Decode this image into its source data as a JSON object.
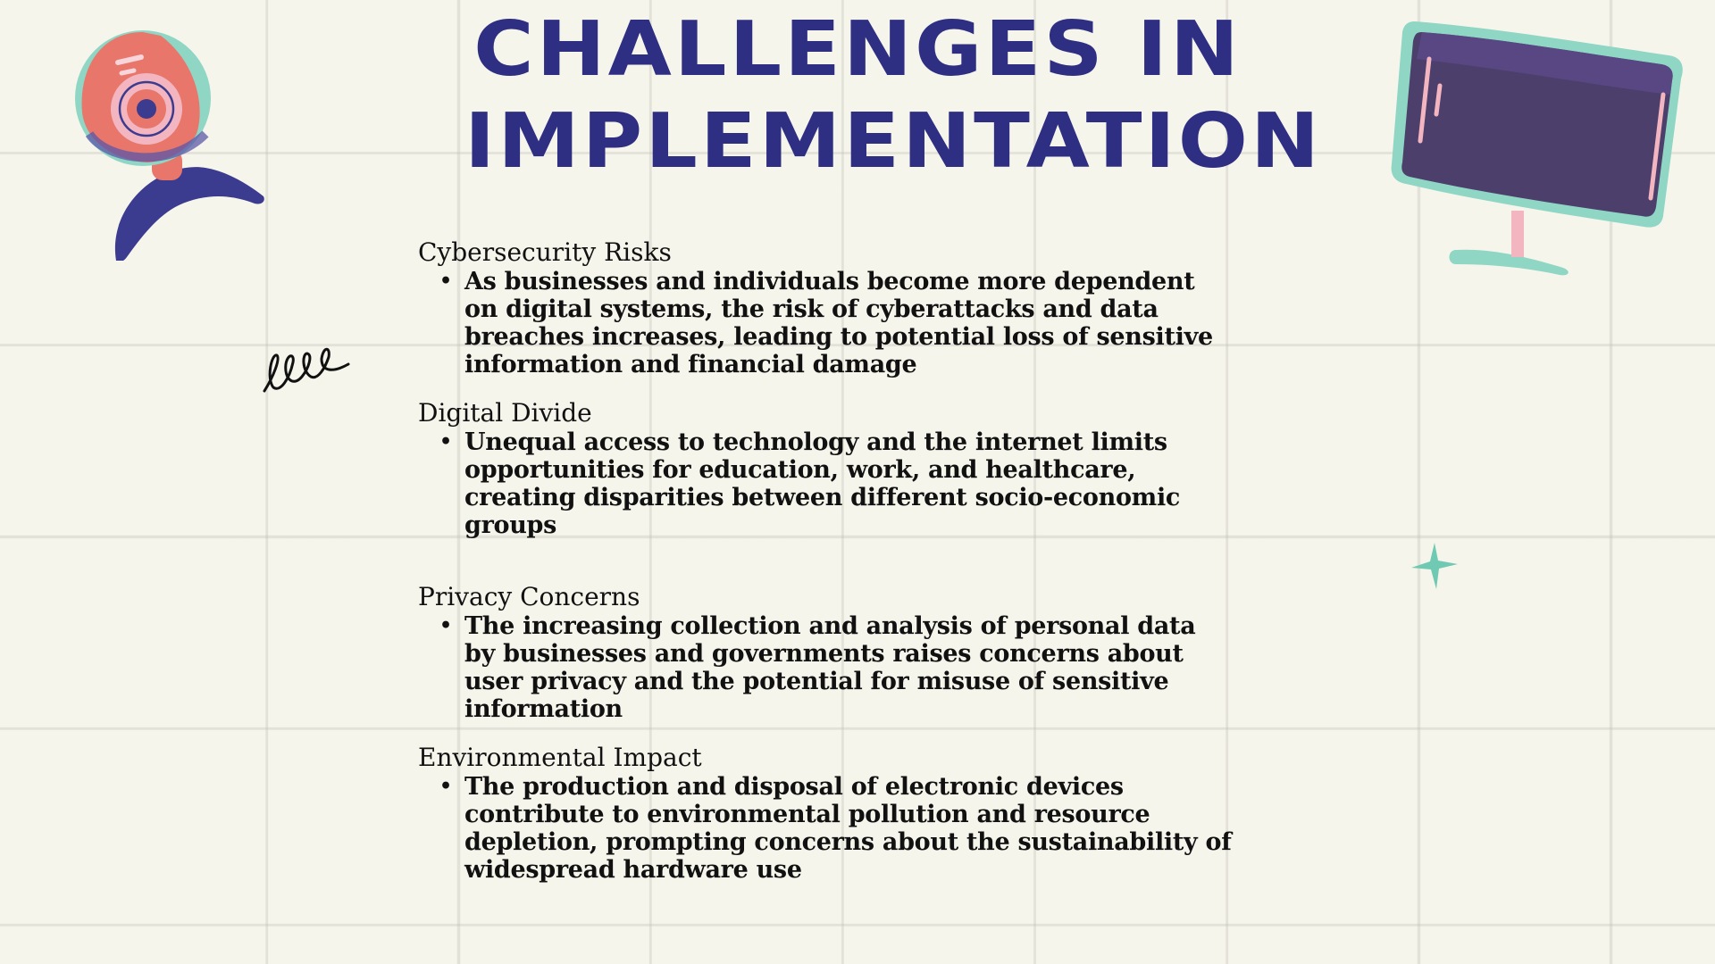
{
  "slide": {
    "title_line1": "CHALLENGES IN",
    "title_line2": "IMPLEMENTATION",
    "title_color": "#2e2e82"
  },
  "sections": [
    {
      "heading": "Cybersecurity Risks",
      "bullet": "As businesses and individuals become more dependent on digital systems, the risk of cyberattacks and data breaches increases, leading to potential loss of sensitive information and financial damage"
    },
    {
      "heading": "Digital Divide",
      "bullet": "Unequal access to technology and the internet limits opportunities for education, work, and healthcare, creating disparities between different socio-economic groups"
    },
    {
      "heading": "Privacy Concerns",
      "bullet": "The increasing collection and analysis of personal data by businesses and governments raises concerns about user privacy and the potential for misuse of sensitive information"
    },
    {
      "heading": "Environmental Impact",
      "bullet": "The production and disposal of electronic devices contribute to environmental pollution and resource depletion, prompting concerns about the sustainability of widespread hardware use"
    }
  ],
  "bullet_char": "•",
  "icons": [
    "webcam-icon",
    "monitor-icon",
    "squiggle-icon",
    "sparkle-star-icon"
  ],
  "colors": {
    "background": "#f6f5ec",
    "navy": "#2e2e82",
    "coral": "#e8766a",
    "mint": "#8fd6c4",
    "purple": "#4d3f6b",
    "pink": "#f3b6c0"
  }
}
